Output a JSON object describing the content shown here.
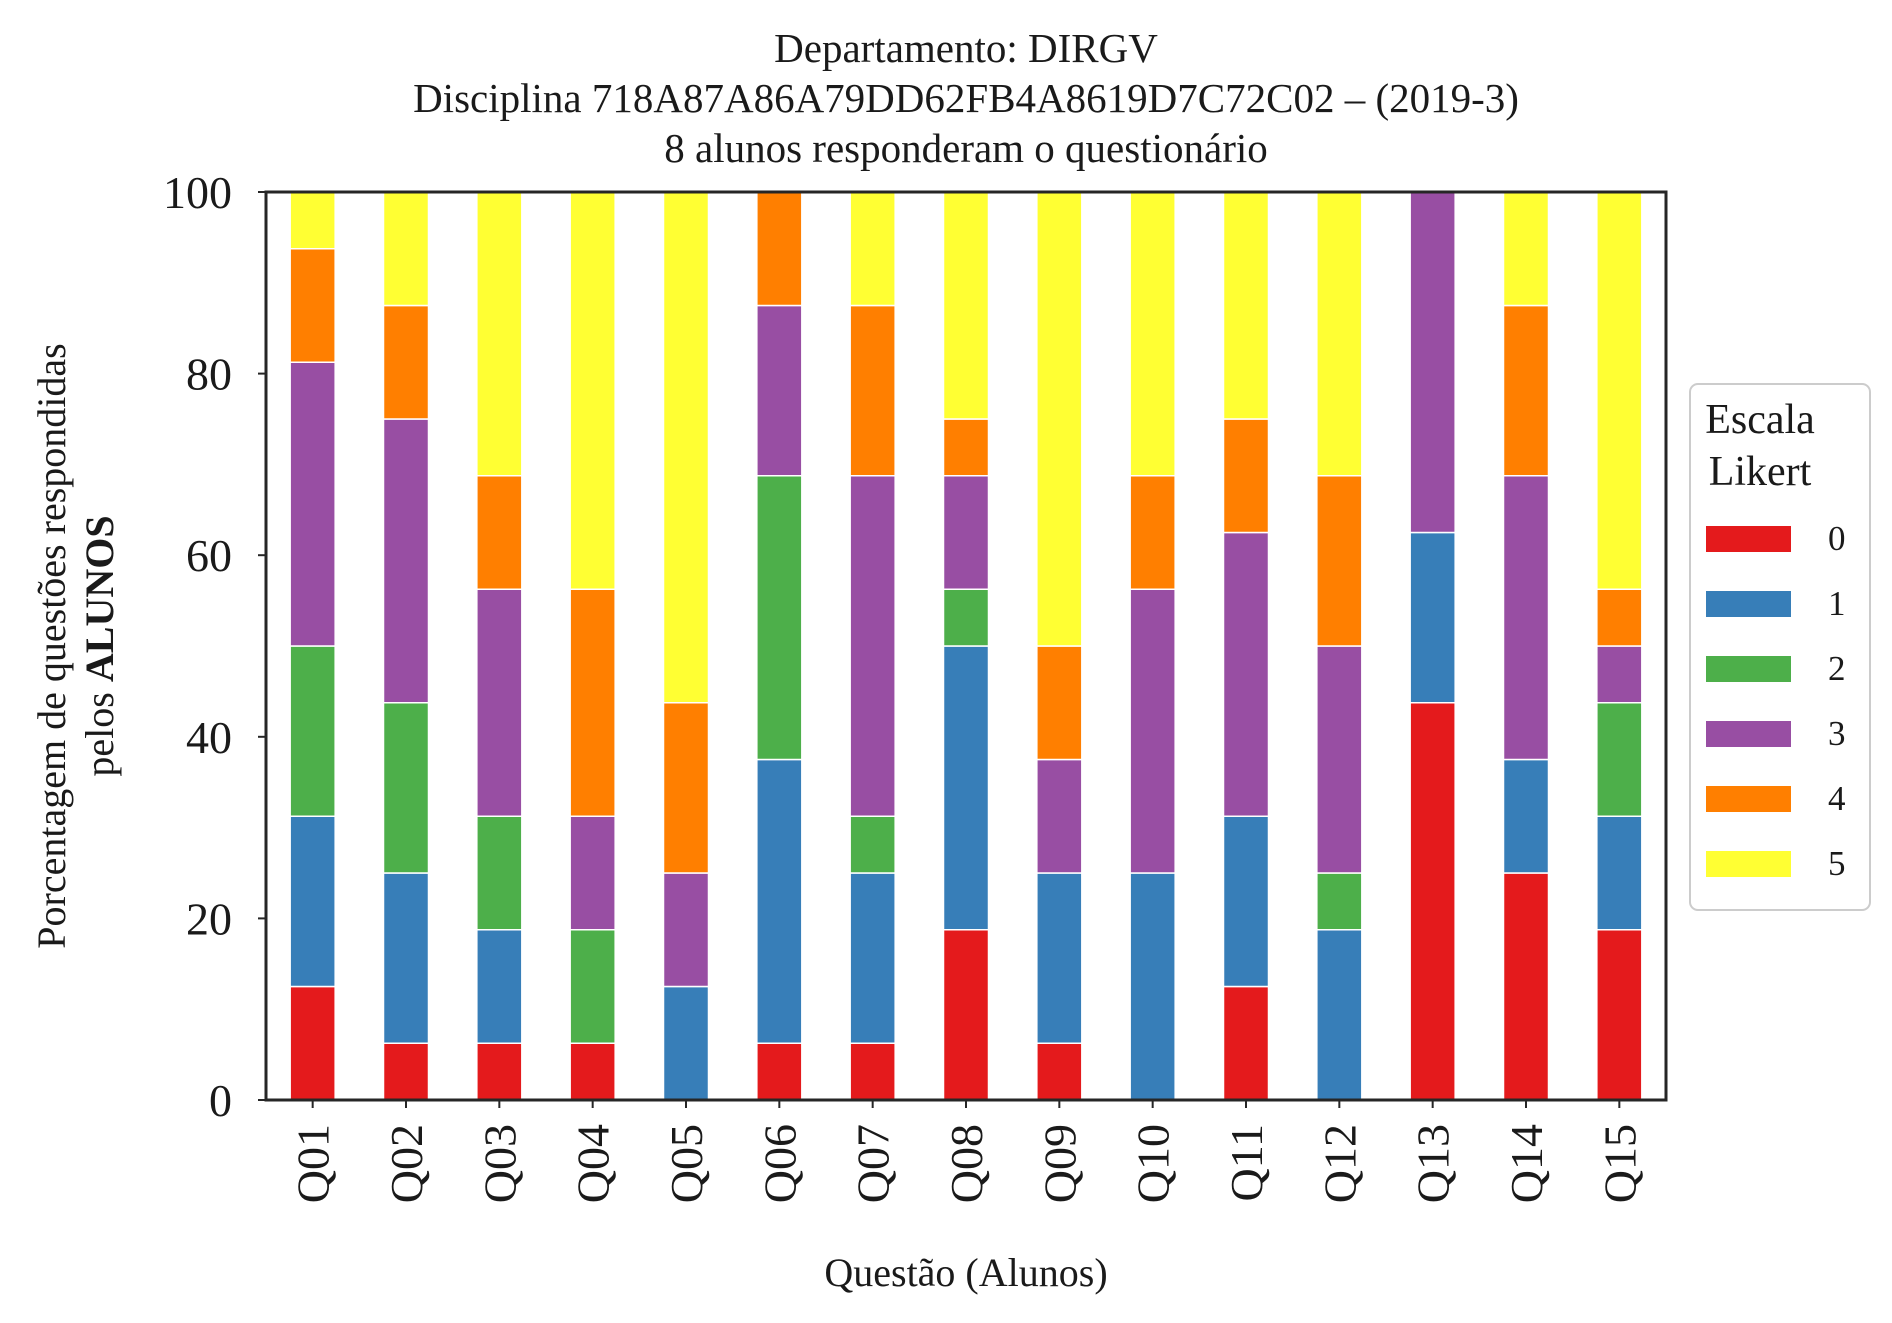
{
  "chart_data": {
    "type": "bar",
    "stacked": true,
    "title": {
      "line1": "Departamento: DIRGV",
      "line2": "Disciplina 718A87A86A79DD62FB4A8619D7C72C02 – (2019-3)",
      "line3": "8 alunos responderam o questionário"
    },
    "ylabel": {
      "line1": "Porcentagem de questões respondidas",
      "line2_prefix": "pelos ",
      "line2_bold": "ALUNOS"
    },
    "xlabel": "Questão (Alunos)",
    "ylim": [
      0,
      100
    ],
    "yticks": [
      "0",
      "20",
      "40",
      "60",
      "80",
      "100"
    ],
    "grid": false,
    "legend": {
      "title_line1": "Escala",
      "title_line2": "Likert",
      "placement": "right-center"
    },
    "categories": [
      "Q01",
      "Q02",
      "Q03",
      "Q04",
      "Q05",
      "Q06",
      "Q07",
      "Q08",
      "Q09",
      "Q10",
      "Q11",
      "Q12",
      "Q13",
      "Q14",
      "Q15"
    ],
    "series": [
      {
        "name": "0",
        "color": "#e41a1c",
        "values": [
          12.5,
          6.25,
          6.25,
          6.25,
          0,
          6.25,
          6.25,
          18.75,
          6.25,
          0,
          12.5,
          0,
          43.75,
          25,
          18.75
        ]
      },
      {
        "name": "1",
        "color": "#377eb8",
        "values": [
          18.75,
          18.75,
          12.5,
          0,
          12.5,
          31.25,
          18.75,
          31.25,
          18.75,
          25,
          18.75,
          18.75,
          18.75,
          12.5,
          12.5
        ]
      },
      {
        "name": "2",
        "color": "#4daf4a",
        "values": [
          18.75,
          18.75,
          12.5,
          12.5,
          0,
          31.25,
          6.25,
          6.25,
          0,
          0,
          0,
          6.25,
          0,
          0,
          12.5
        ]
      },
      {
        "name": "3",
        "color": "#984ea3",
        "values": [
          31.25,
          31.25,
          25,
          12.5,
          12.5,
          18.75,
          37.5,
          12.5,
          12.5,
          31.25,
          31.25,
          25,
          37.5,
          31.25,
          6.25
        ]
      },
      {
        "name": "4",
        "color": "#ff7f00",
        "values": [
          12.5,
          12.5,
          12.5,
          25,
          18.75,
          12.5,
          18.75,
          6.25,
          12.5,
          12.5,
          12.5,
          18.75,
          0,
          18.75,
          6.25
        ]
      },
      {
        "name": "5",
        "color": "#ffff33",
        "values": [
          6.25,
          12.5,
          31.25,
          43.75,
          56.25,
          0,
          12.5,
          25,
          50,
          31.25,
          25,
          31.25,
          0,
          12.5,
          43.75
        ]
      }
    ]
  }
}
